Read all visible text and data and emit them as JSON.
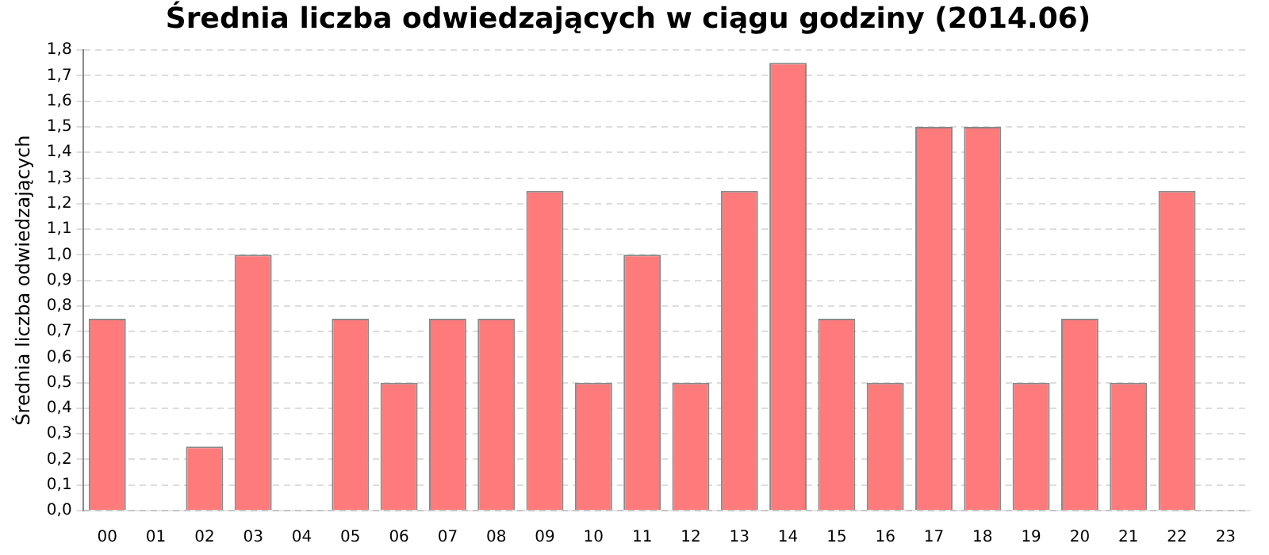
{
  "chart_data": {
    "type": "bar",
    "title": "Średnia liczba odwiedzających w ciągu godziny (2014.06)",
    "ylabel": "Średnia liczba odwiedzających",
    "categories": [
      "00",
      "01",
      "02",
      "03",
      "04",
      "05",
      "06",
      "07",
      "08",
      "09",
      "10",
      "11",
      "12",
      "13",
      "14",
      "15",
      "16",
      "17",
      "18",
      "19",
      "20",
      "21",
      "22",
      "23"
    ],
    "values": [
      0.75,
      0,
      0.25,
      1.0,
      0,
      0.75,
      0.5,
      0.75,
      0.75,
      1.25,
      0.5,
      1.0,
      0.5,
      1.25,
      1.75,
      0.75,
      0.5,
      1.5,
      1.5,
      0.5,
      0.75,
      0.5,
      1.25,
      0
    ],
    "color": "#ff7b7b",
    "ylim": [
      0,
      1.8
    ],
    "yticks": [
      {
        "value": 0,
        "label": "0,0"
      },
      {
        "value": 0.1,
        "label": "0,1"
      },
      {
        "value": 0.2,
        "label": "0,2"
      },
      {
        "value": 0.3,
        "label": "0,3"
      },
      {
        "value": 0.4,
        "label": "0,4"
      },
      {
        "value": 0.5,
        "label": "0,5"
      },
      {
        "value": 0.6,
        "label": "0,6"
      },
      {
        "value": 0.7,
        "label": "0,7"
      },
      {
        "value": 0.8,
        "label": "0,8"
      },
      {
        "value": 0.9,
        "label": "0,9"
      },
      {
        "value": 1.0,
        "label": "1,0"
      },
      {
        "value": 1.1,
        "label": "1,1"
      },
      {
        "value": 1.2,
        "label": "1,2"
      },
      {
        "value": 1.3,
        "label": "1,3"
      },
      {
        "value": 1.4,
        "label": "1,4"
      },
      {
        "value": 1.5,
        "label": "1,5"
      },
      {
        "value": 1.6,
        "label": "1,6"
      },
      {
        "value": 1.7,
        "label": "1,7"
      },
      {
        "value": 1.8,
        "label": "1,8"
      }
    ],
    "grid": "y"
  }
}
